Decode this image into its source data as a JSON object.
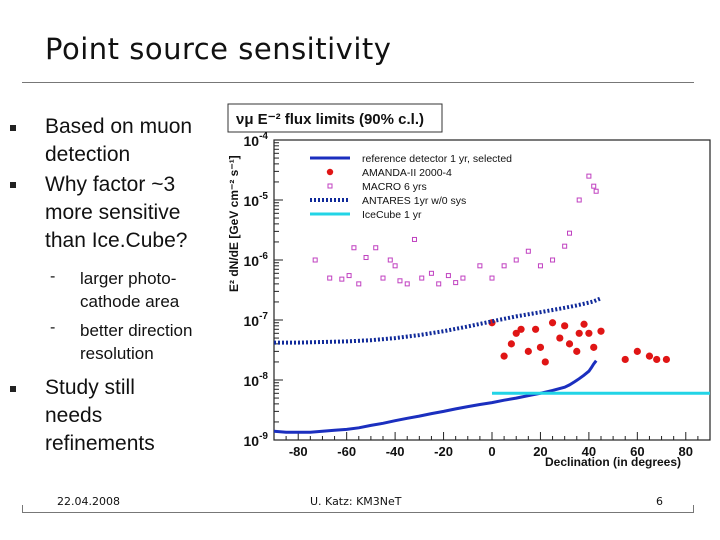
{
  "slide": {
    "title": "Point source sensitivity",
    "bullets": [
      {
        "text_lines": [
          "Based on muon",
          "detection"
        ]
      },
      {
        "text_lines": [
          "Why factor ~3",
          "more sensitive",
          "than Ice.Cube?"
        ]
      },
      {
        "text_lines": [
          "Study still",
          "needs",
          "refinements"
        ]
      }
    ],
    "sub_bullets": [
      {
        "marker": "-",
        "text_lines": [
          "larger photo-",
          "cathode area"
        ]
      },
      {
        "marker": "-",
        "text_lines": [
          "better direction",
          "resolution"
        ]
      }
    ],
    "footer": {
      "date": "22.04.2008",
      "author": "U. Katz: KM3NeT",
      "page": "6"
    }
  },
  "chart_data": {
    "type": "scatter",
    "title": "νμ E⁻² flux limits (90% c.l.)",
    "xlabel": "Declination (in degrees)",
    "ylabel": "E² dN/dE [GeV cm⁻² s⁻¹]",
    "xlim": [
      -90,
      90
    ],
    "ylim": [
      1e-09,
      0.0001
    ],
    "yscale": "log",
    "x_ticks": [
      -80,
      -60,
      -40,
      -20,
      0,
      20,
      40,
      60,
      80
    ],
    "x_tick_labels": [
      "-80",
      "-60",
      "-40",
      "-20",
      "0",
      "20",
      "40",
      "60",
      "80"
    ],
    "y_ticks": [
      1e-09,
      1e-08,
      1e-07,
      1e-06,
      1e-05,
      0.0001
    ],
    "y_tick_labels": [
      {
        "base": "10",
        "exp": "-9"
      },
      {
        "base": "10",
        "exp": "-8"
      },
      {
        "base": "10",
        "exp": "-7"
      },
      {
        "base": "10",
        "exp": "-6"
      },
      {
        "base": "10",
        "exp": "-5"
      },
      {
        "base": "10",
        "exp": "-4"
      }
    ],
    "legend_position": "top-right",
    "grid": false,
    "series": [
      {
        "name": "reference detector 1 yr, selected",
        "style": "line",
        "color": "#1b2fbf",
        "x": [
          -90,
          -85,
          -80,
          -75,
          -70,
          -65,
          -60,
          -55,
          -50,
          -45,
          -40,
          -35,
          -30,
          -25,
          -20,
          -15,
          -10,
          -5,
          0,
          5,
          10,
          15,
          20,
          25,
          30,
          32,
          34,
          36,
          38,
          40,
          41,
          42,
          43
        ],
        "y": [
          1.4e-09,
          1.35e-09,
          1.35e-09,
          1.35e-09,
          1.4e-09,
          1.45e-09,
          1.5e-09,
          1.6e-09,
          1.75e-09,
          1.9e-09,
          2.1e-09,
          2.3e-09,
          2.5e-09,
          2.75e-09,
          3e-09,
          3.3e-09,
          3.6e-09,
          3.9e-09,
          4.2e-09,
          4.6e-09,
          5e-09,
          5.5e-09,
          6e-09,
          6.7e-09,
          7.6e-09,
          8.3e-09,
          9.3e-09,
          1.05e-08,
          1.2e-08,
          1.4e-08,
          1.6e-08,
          1.85e-08,
          2.1e-08
        ]
      },
      {
        "name": "AMANDA-II 2000-4",
        "style": "markers",
        "marker": "circle",
        "color": "#e01515",
        "x": [
          0,
          8,
          10,
          12,
          15,
          18,
          20,
          25,
          28,
          30,
          32,
          35,
          36,
          38,
          40,
          42,
          45,
          55,
          60,
          65,
          68,
          72,
          5,
          22
        ],
        "y": [
          9e-08,
          4e-08,
          6e-08,
          7e-08,
          3e-08,
          7e-08,
          3.5e-08,
          9e-08,
          5e-08,
          8e-08,
          4e-08,
          3e-08,
          6e-08,
          8.5e-08,
          6e-08,
          3.5e-08,
          6.5e-08,
          2.2e-08,
          3e-08,
          2.5e-08,
          2.2e-08,
          2.2e-08,
          2.5e-08,
          2e-08
        ]
      },
      {
        "name": "MACRO 6 yrs",
        "style": "markers",
        "marker": "square-open",
        "color": "#c040c0",
        "x": [
          -73,
          -67,
          -62,
          -59,
          -57,
          -55,
          -52,
          -48,
          -45,
          -42,
          -40,
          -38,
          -35,
          -32,
          -29,
          -25,
          -22,
          -18,
          -15,
          -12,
          -5,
          0,
          5,
          10,
          15,
          20,
          25,
          30,
          32,
          36,
          40,
          42,
          43
        ],
        "y": [
          1e-06,
          5e-07,
          4.8e-07,
          5.5e-07,
          1.6e-06,
          4e-07,
          1.1e-06,
          1.6e-06,
          5e-07,
          1e-06,
          8e-07,
          4.5e-07,
          4e-07,
          2.2e-06,
          5e-07,
          6e-07,
          4e-07,
          5.5e-07,
          4.2e-07,
          5e-07,
          8e-07,
          5e-07,
          8e-07,
          1e-06,
          1.4e-06,
          8e-07,
          1e-06,
          1.7e-06,
          2.8e-06,
          1e-05,
          2.5e-05,
          1.7e-05,
          1.4e-05
        ]
      },
      {
        "name": "ANTARES 1yr w/0 sys",
        "style": "dotted",
        "color": "#102a9a",
        "x": [
          -90,
          -80,
          -70,
          -60,
          -50,
          -40,
          -30,
          -20,
          -10,
          0,
          10,
          20,
          30,
          35,
          40,
          42,
          45
        ],
        "y": [
          4.2e-08,
          4.2e-08,
          4.3e-08,
          4.4e-08,
          4.6e-08,
          5e-08,
          5.6e-08,
          6.5e-08,
          7.8e-08,
          9.5e-08,
          1.15e-07,
          1.35e-07,
          1.6e-07,
          1.75e-07,
          1.95e-07,
          2.05e-07,
          2.3e-07
        ]
      },
      {
        "name": "IceCube 1 yr",
        "style": "line",
        "color": "#22d4e6",
        "x": [
          0,
          90
        ],
        "y": [
          6e-09,
          6e-09
        ]
      }
    ]
  }
}
